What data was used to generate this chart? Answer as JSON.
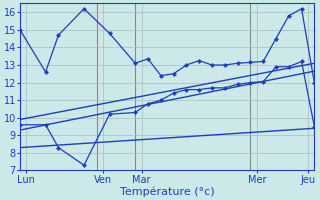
{
  "background_color": "#cde8e8",
  "grid_color": "#aabbbb",
  "line_color": "#1a3fbf",
  "xlabel": "Température (°c)",
  "xlabel_fontsize": 8,
  "tick_fontsize": 7,
  "ylim": [
    7,
    16.5
  ],
  "yticks": [
    7,
    8,
    9,
    10,
    11,
    12,
    13,
    14,
    15,
    16
  ],
  "xlim": [
    0,
    23
  ],
  "day_tick_positions": [
    0.5,
    6.5,
    9.5,
    18.5,
    22.5
  ],
  "day_labels": [
    "Lun",
    "Ven",
    "Mar",
    "Mer",
    "Jeu"
  ],
  "vline_positions": [
    0,
    6,
    9,
    18,
    23
  ],
  "line1_x": [
    0,
    2,
    3,
    5,
    7,
    9,
    10,
    11,
    12,
    13,
    14,
    15,
    16,
    17,
    18,
    19,
    20,
    21,
    22,
    23
  ],
  "line1_y": [
    15.0,
    12.6,
    14.7,
    16.2,
    14.8,
    13.1,
    13.35,
    12.4,
    12.5,
    13.0,
    13.25,
    13.0,
    13.0,
    13.1,
    13.15,
    13.2,
    14.5,
    15.8,
    16.2,
    12.0
  ],
  "line2_x": [
    0,
    2,
    3,
    5,
    7,
    9,
    10,
    11,
    12,
    13,
    14,
    15,
    16,
    17,
    18,
    19,
    20,
    21,
    22,
    23
  ],
  "line2_y": [
    9.6,
    9.6,
    8.3,
    7.3,
    10.2,
    10.3,
    10.8,
    11.0,
    11.4,
    11.6,
    11.6,
    11.7,
    11.7,
    11.9,
    12.0,
    12.05,
    12.9,
    12.9,
    13.2,
    9.5
  ],
  "line3_x": [
    0,
    23
  ],
  "line3_y": [
    9.9,
    13.1
  ],
  "line4_x": [
    0,
    23
  ],
  "line4_y": [
    9.3,
    12.65
  ],
  "line5_x": [
    0,
    23
  ],
  "line5_y": [
    8.3,
    9.4
  ]
}
